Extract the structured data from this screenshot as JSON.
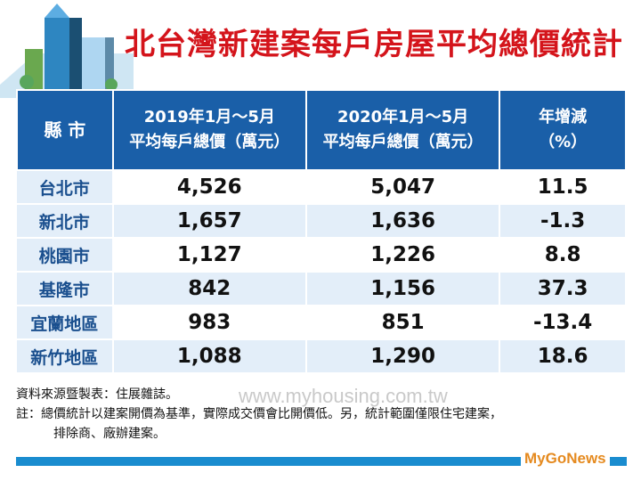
{
  "title": "北台灣新建案每戶房屋平均總價統計",
  "headers": {
    "city": "縣 市",
    "y2019_line1": "2019年1月～5月",
    "y2019_line2": "平均每戶總價（萬元）",
    "y2020_line1": "2020年1月～5月",
    "y2020_line2": "平均每戶總價（萬元）",
    "change_line1": "年增減",
    "change_line2": "（%）"
  },
  "rows": [
    {
      "city": "台北市",
      "v2019": "4,526",
      "v2020": "5,047",
      "change": "11.5"
    },
    {
      "city": "新北市",
      "v2019": "1,657",
      "v2020": "1,636",
      "change": "-1.3"
    },
    {
      "city": "桃園市",
      "v2019": "1,127",
      "v2020": "1,226",
      "change": "8.8"
    },
    {
      "city": "基隆市",
      "v2019": "842",
      "v2020": "1,156",
      "change": "37.3"
    },
    {
      "city": "宜蘭地區",
      "v2019": "983",
      "v2020": "851",
      "change": "-13.4"
    },
    {
      "city": "新竹地區",
      "v2019": "1,088",
      "v2020": "1,290",
      "change": "18.6"
    }
  ],
  "notes": {
    "source": "資料來源暨製表：住展雜誌。",
    "note1": "註：總價統計以建案開價為基準，實際成交價會比開價低。另，統計範圍僅限住宅建案，",
    "note2": "排除商、廠辦建案。"
  },
  "watermark": "www.myhousing.com.tw",
  "logo": "MyGoNews",
  "colors": {
    "title": "#d4141b",
    "header_bg": "#1a5fa8",
    "city_bg": "#e3eef9",
    "bottom_bar": "#1a8ccf"
  }
}
